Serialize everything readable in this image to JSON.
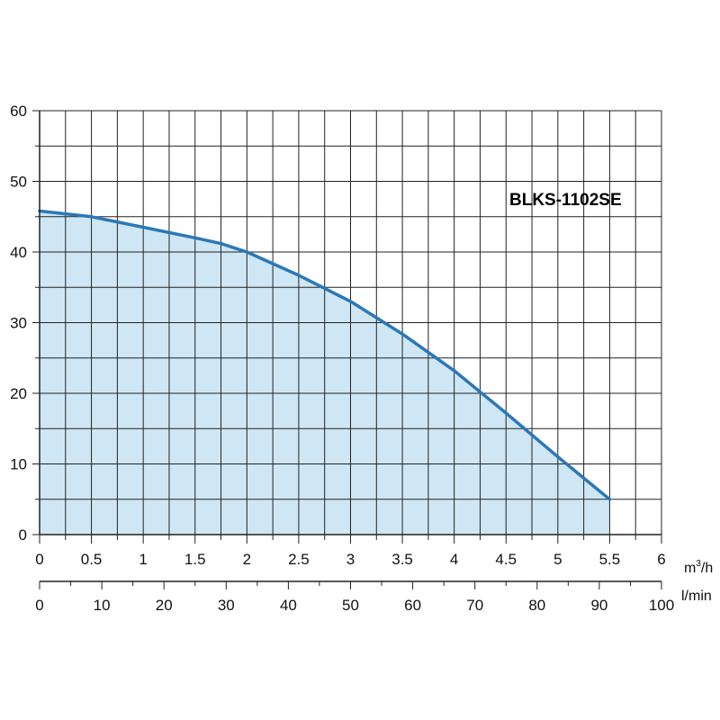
{
  "chart_data": {
    "type": "area",
    "title": "",
    "model_label": "BLKS-1102SE",
    "x_unit_primary": "m³/h",
    "x_unit_primary_base": "m",
    "x_unit_primary_sup": "3",
    "x_unit_primary_tail": "/h",
    "x_unit_secondary": "l/min",
    "ylabel": "",
    "xlim": [
      0,
      6
    ],
    "ylim": [
      0,
      60
    ],
    "x_ticks": [
      "0",
      "0.5",
      "1",
      "1.5",
      "2",
      "2.5",
      "3",
      "3.5",
      "4",
      "4.5",
      "5",
      "5.5",
      "6"
    ],
    "x_tick_values": [
      0,
      0.5,
      1,
      1.5,
      2,
      2.5,
      3,
      3.5,
      4,
      4.5,
      5,
      5.5,
      6
    ],
    "x2_ticks": [
      "0",
      "10",
      "20",
      "30",
      "40",
      "50",
      "60",
      "70",
      "80",
      "90",
      "100"
    ],
    "x2_tick_values": [
      0,
      10,
      20,
      30,
      40,
      50,
      60,
      70,
      80,
      90,
      100
    ],
    "x2_lim": [
      0,
      100
    ],
    "y_ticks": [
      "0",
      "10",
      "20",
      "30",
      "40",
      "50",
      "60"
    ],
    "y_tick_values": [
      0,
      10,
      20,
      30,
      40,
      50,
      60
    ],
    "grid": true,
    "series": [
      {
        "x": [
          0,
          0.5,
          1,
          1.5,
          1.75,
          2,
          2.5,
          3,
          3.5,
          4,
          4.5,
          5,
          5.5
        ],
        "y": [
          45.8,
          45.0,
          43.5,
          42.0,
          41.2,
          40.0,
          36.7,
          33.0,
          28.4,
          23.2,
          17.2,
          11.0,
          5.0
        ]
      }
    ],
    "colors": {
      "line": "#2b78b8",
      "fill": "#cfe7f4",
      "grid": "#222222",
      "axis": "#222222"
    }
  }
}
